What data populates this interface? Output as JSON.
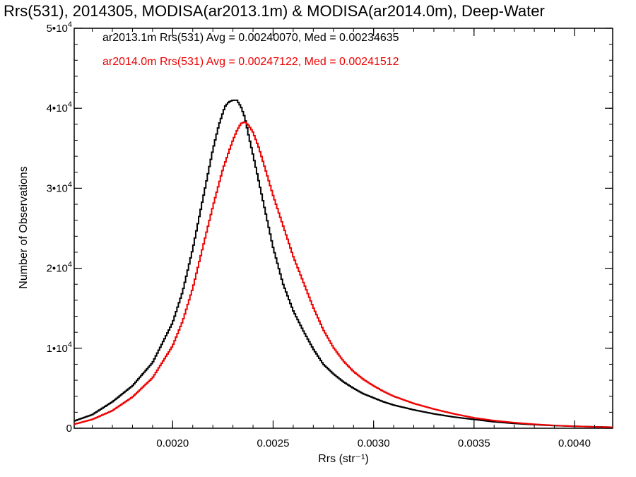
{
  "chart_data": {
    "type": "line",
    "title": "Rrs(531), 2014305, MODISA(ar2013.1m) & MODISA(ar2014.0m), Deep-Water",
    "xlabel": "Rrs (str⁻¹)",
    "ylabel": "Number of Observations",
    "xlim": [
      0.00151,
      0.00419
    ],
    "ylim": [
      0,
      50000
    ],
    "xticks": [
      0.002,
      0.0025,
      0.003,
      0.0035,
      0.004
    ],
    "xtick_labels": [
      "0.0020",
      "0.0025",
      "0.0030",
      "0.0035",
      "0.0040"
    ],
    "yticks": [
      0,
      10000,
      20000,
      30000,
      40000,
      50000
    ],
    "ytick_labels": [
      {
        "base": "0",
        "exp": ""
      },
      {
        "base": "1•10",
        "exp": "4"
      },
      {
        "base": "2•10",
        "exp": "4"
      },
      {
        "base": "3•10",
        "exp": "4"
      },
      {
        "base": "4•10",
        "exp": "4"
      },
      {
        "base": "5•10",
        "exp": "4"
      }
    ],
    "grid": false,
    "legend_position": "top-left",
    "series": [
      {
        "name": "ar2013.1m",
        "legend_text": "ar2013.1m Rrs(531) Avg = 0.00240070, Med = 0.00234635",
        "color": "#000000",
        "x": [
          0.00151,
          0.0016,
          0.0017,
          0.0018,
          0.0019,
          0.002,
          0.00205,
          0.0021,
          0.00215,
          0.0022,
          0.00223,
          0.00226,
          0.00228,
          0.0023,
          0.00232,
          0.00234,
          0.00236,
          0.00238,
          0.0024,
          0.00245,
          0.0025,
          0.00255,
          0.0026,
          0.00265,
          0.0027,
          0.00275,
          0.0028,
          0.00285,
          0.0029,
          0.00295,
          0.003,
          0.00305,
          0.0031,
          0.0032,
          0.0033,
          0.0034,
          0.0035,
          0.0036,
          0.0037,
          0.0038,
          0.0039,
          0.004,
          0.0041,
          0.00419
        ],
        "y": [
          900,
          1700,
          3300,
          5300,
          8200,
          13200,
          17100,
          22400,
          28600,
          34800,
          37900,
          40200,
          40800,
          41000,
          41000,
          40200,
          38800,
          36400,
          34200,
          28400,
          22600,
          18000,
          14700,
          12200,
          9900,
          8000,
          6800,
          5800,
          5000,
          4300,
          3800,
          3300,
          2900,
          2300,
          1800,
          1400,
          1100,
          800,
          600,
          450,
          330,
          250,
          180,
          130
        ]
      },
      {
        "name": "ar2014.0m",
        "legend_text": "ar2014.0m Rrs(531) Avg = 0.00247122, Med = 0.00241512",
        "color": "#ee0000",
        "x": [
          0.00151,
          0.0016,
          0.0017,
          0.0018,
          0.0019,
          0.002,
          0.00205,
          0.0021,
          0.00215,
          0.0022,
          0.00225,
          0.00228,
          0.0023,
          0.00232,
          0.00234,
          0.00236,
          0.00238,
          0.0024,
          0.00243,
          0.00246,
          0.0025,
          0.00255,
          0.0026,
          0.00265,
          0.0027,
          0.00275,
          0.0028,
          0.00285,
          0.0029,
          0.00295,
          0.003,
          0.00305,
          0.0031,
          0.0032,
          0.0033,
          0.0034,
          0.0035,
          0.0036,
          0.0037,
          0.0038,
          0.0039,
          0.004,
          0.0041,
          0.00419
        ],
        "y": [
          500,
          1100,
          2200,
          3900,
          6300,
          10300,
          13400,
          17500,
          22600,
          27700,
          32400,
          34600,
          36000,
          37200,
          38100,
          38300,
          37800,
          37000,
          35000,
          32500,
          29100,
          25300,
          21500,
          18300,
          15100,
          12300,
          10100,
          8400,
          7100,
          6100,
          5300,
          4600,
          4000,
          3100,
          2400,
          1800,
          1300,
          950,
          700,
          500,
          350,
          250,
          170,
          120
        ]
      }
    ]
  }
}
